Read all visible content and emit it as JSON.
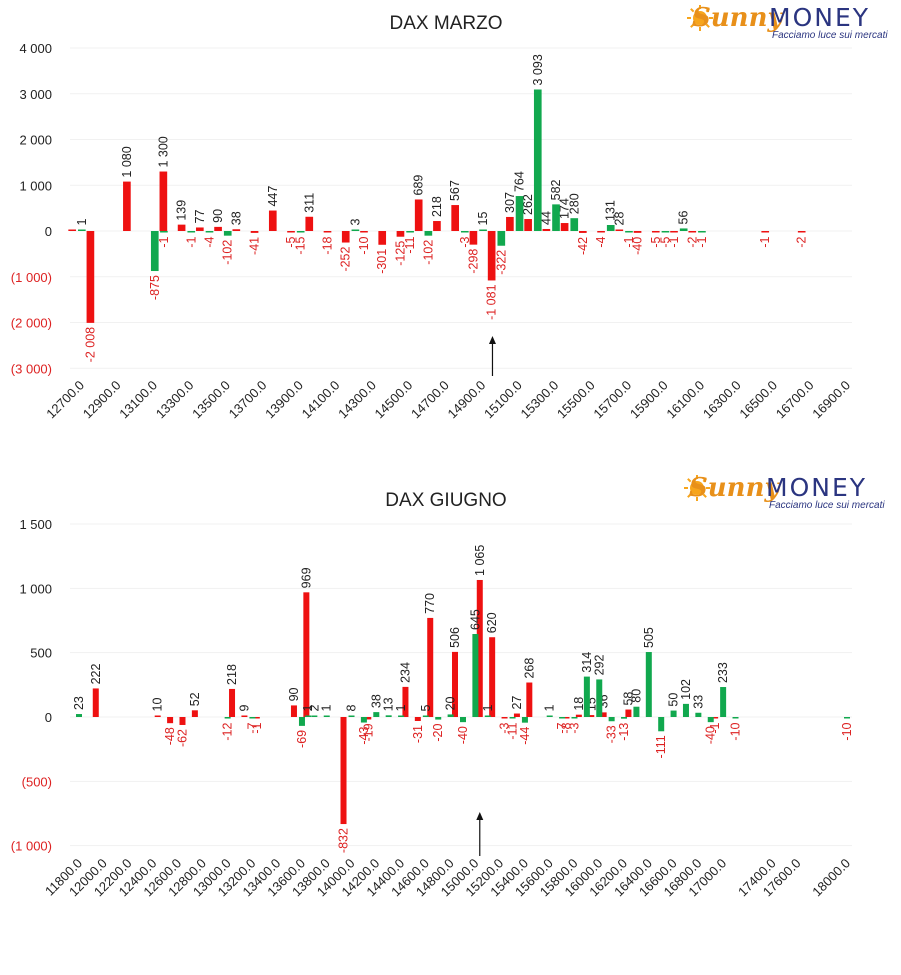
{
  "colors": {
    "call": "#ee1111",
    "put": "#11a84e",
    "negative_tick": "#dd2222",
    "axis_text": "#222222"
  },
  "logo": {
    "word1": "Sunny",
    "word2": "MONEY",
    "tagline": "Facciamo luce sui mercati",
    "icon": "sun-icon"
  },
  "chart_data": [
    {
      "type": "bar",
      "title": "DAX MARZO",
      "xlabel": "",
      "ylabel": "",
      "ylim": [
        -3000,
        4000
      ],
      "ylim_max": 4300,
      "yticks": [
        {
          "v": 4000,
          "t": "4 000"
        },
        {
          "v": 3000,
          "t": "3 000"
        },
        {
          "v": 2000,
          "t": "2 000"
        },
        {
          "v": 1000,
          "t": "1 000"
        },
        {
          "v": 0,
          "t": "0"
        },
        {
          "v": -1000,
          "t": "(1 000)"
        },
        {
          "v": -2000,
          "t": "(2 000)"
        },
        {
          "v": -3000,
          "t": "(3 000)"
        }
      ],
      "strikes": [
        12700,
        12800,
        12900,
        13000,
        13100,
        13200,
        13300,
        13400,
        13500,
        13600,
        13700,
        13800,
        13900,
        14000,
        14100,
        14200,
        14300,
        14400,
        14500,
        14600,
        14700,
        14800,
        14900,
        15000,
        15100,
        15200,
        15300,
        15400,
        15500,
        15600,
        15700,
        15800,
        15900,
        16000,
        16100,
        16200,
        16300,
        16400,
        16500,
        16600,
        16700,
        16800,
        16900
      ],
      "xtick_labels": [
        "12700.0",
        "12900.0",
        "13100.0",
        "13300.0",
        "13500.0",
        "13700.0",
        "13900.0",
        "14100.0",
        "14300.0",
        "14500.0",
        "14700.0",
        "14900.0",
        "15100.0",
        "15300.0",
        "15500.0",
        "15700.0",
        "15900.0",
        "16100.0",
        "16300.0",
        "16500.0",
        "16700.0",
        "16900.0"
      ],
      "arrow_at": 15000,
      "calls": [
        {
          "x": 12700,
          "y": 0,
          "label": ""
        },
        {
          "x": 12800,
          "y": -2008,
          "label": "-2 008"
        },
        {
          "x": 13000,
          "y": 1080,
          "label": "1 080"
        },
        {
          "x": 13200,
          "y": 1300,
          "label": "1 300"
        },
        {
          "x": 13300,
          "y": 139,
          "label": "139"
        },
        {
          "x": 13400,
          "y": 77,
          "label": "77"
        },
        {
          "x": 13500,
          "y": 90,
          "label": "90"
        },
        {
          "x": 13600,
          "y": 38,
          "label": "38"
        },
        {
          "x": 13700,
          "y": -41,
          "label": "-41"
        },
        {
          "x": 13800,
          "y": 447,
          "label": "447"
        },
        {
          "x": 13900,
          "y": -5,
          "label": "-5"
        },
        {
          "x": 14000,
          "y": 311,
          "label": "311"
        },
        {
          "x": 14100,
          "y": -18,
          "label": "-18"
        },
        {
          "x": 14200,
          "y": -252,
          "label": "-252"
        },
        {
          "x": 14300,
          "y": -10,
          "label": "-10"
        },
        {
          "x": 14400,
          "y": -301,
          "label": "-301"
        },
        {
          "x": 14500,
          "y": -125,
          "label": "-125"
        },
        {
          "x": 14600,
          "y": 689,
          "label": "689"
        },
        {
          "x": 14700,
          "y": 218,
          "label": "218"
        },
        {
          "x": 14800,
          "y": 567,
          "label": "567"
        },
        {
          "x": 14900,
          "y": -298,
          "label": "-298"
        },
        {
          "x": 15000,
          "y": -1081,
          "label": "-1 081"
        },
        {
          "x": 15100,
          "y": 307,
          "label": "307"
        },
        {
          "x": 15200,
          "y": 262,
          "label": "262"
        },
        {
          "x": 15300,
          "y": 44,
          "label": "44"
        },
        {
          "x": 15400,
          "y": 174,
          "label": "174"
        },
        {
          "x": 15500,
          "y": -42,
          "label": "-42"
        },
        {
          "x": 15600,
          "y": -4,
          "label": "-4"
        },
        {
          "x": 15700,
          "y": 28,
          "label": "28"
        },
        {
          "x": 15800,
          "y": -40,
          "label": "-40"
        },
        {
          "x": 15900,
          "y": -5,
          "label": "-5"
        },
        {
          "x": 16000,
          "y": -1,
          "label": "-1"
        },
        {
          "x": 16100,
          "y": -2,
          "label": "-2"
        },
        {
          "x": 16500,
          "y": -1,
          "label": "-1"
        },
        {
          "x": 16700,
          "y": -2,
          "label": "-2"
        }
      ],
      "puts": [
        {
          "x": 12700,
          "y": 1,
          "label": "1"
        },
        {
          "x": 13100,
          "y": -875,
          "label": "-875"
        },
        {
          "x": 13100,
          "y": -1,
          "label": "-1",
          "slot": 1
        },
        {
          "x": 13300,
          "y": -1,
          "label": "-1"
        },
        {
          "x": 13400,
          "y": -4,
          "label": "-4"
        },
        {
          "x": 13500,
          "y": -102,
          "label": "-102"
        },
        {
          "x": 13900,
          "y": -15,
          "label": "-15"
        },
        {
          "x": 14200,
          "y": 3,
          "label": "3"
        },
        {
          "x": 14500,
          "y": -11,
          "label": "-11"
        },
        {
          "x": 14600,
          "y": -102,
          "label": "-102"
        },
        {
          "x": 14800,
          "y": -3,
          "label": "-3"
        },
        {
          "x": 14900,
          "y": 15,
          "label": "15"
        },
        {
          "x": 15000,
          "y": -322,
          "label": "-322"
        },
        {
          "x": 15100,
          "y": 764,
          "label": "764"
        },
        {
          "x": 15200,
          "y": 3093,
          "label": "3 093"
        },
        {
          "x": 15300,
          "y": 582,
          "label": "582"
        },
        {
          "x": 15400,
          "y": 280,
          "label": "280"
        },
        {
          "x": 15600,
          "y": 131,
          "label": "131"
        },
        {
          "x": 15700,
          "y": -1,
          "label": "-1"
        },
        {
          "x": 15900,
          "y": -5,
          "label": "-5"
        },
        {
          "x": 16000,
          "y": 56,
          "label": "56"
        },
        {
          "x": 16100,
          "y": -1,
          "label": "-1"
        }
      ]
    },
    {
      "type": "bar",
      "title": "DAX GIUGNO",
      "xlabel": "",
      "ylabel": "",
      "ylim": [
        -1000,
        1500
      ],
      "ylim_max": 1500,
      "ylim_min": -1050,
      "yticks": [
        {
          "v": 1500,
          "t": "1 500"
        },
        {
          "v": 1000,
          "t": "1 000"
        },
        {
          "v": 500,
          "t": "500"
        },
        {
          "v": 0,
          "t": "0"
        },
        {
          "v": -500,
          "t": "(500)"
        },
        {
          "v": -1000,
          "t": "(1 000)"
        }
      ],
      "strikes": [
        11800,
        11900,
        12000,
        12100,
        12200,
        12300,
        12400,
        12500,
        12600,
        12700,
        12800,
        12900,
        13000,
        13100,
        13200,
        13300,
        13400,
        13500,
        13600,
        13700,
        13800,
        13900,
        14000,
        14100,
        14200,
        14300,
        14400,
        14500,
        14600,
        14700,
        14800,
        14900,
        15000,
        15100,
        15200,
        15300,
        15400,
        15500,
        15600,
        15700,
        15800,
        15900,
        16000,
        16100,
        16200,
        16300,
        16400,
        16500,
        16600,
        16700,
        16800,
        16900,
        17000,
        17100,
        17200,
        17300,
        17400,
        17500,
        17600,
        17700,
        17800,
        17900,
        18000
      ],
      "xtick_labels": [
        "11800.0",
        "12000.0",
        "12200.0",
        "12400.0",
        "12600.0",
        "12800.0",
        "13000.0",
        "13200.0",
        "13400.0",
        "13600.0",
        "13800.0",
        "14000.0",
        "14200.0",
        "14400.0",
        "14600.0",
        "14800.0",
        "15000.0",
        "15200.0",
        "15400.0",
        "15600.0",
        "15800.0",
        "16000.0",
        "16200.0",
        "16400.0",
        "16600.0",
        "16800.0",
        "17000.0",
        "17400.0",
        "17600.0",
        "18000.0"
      ],
      "arrow_at": 15100,
      "calls": [
        {
          "x": 12000,
          "y": 222,
          "label": "222"
        },
        {
          "x": 12500,
          "y": 10,
          "label": "10"
        },
        {
          "x": 12600,
          "y": -48,
          "label": "-48"
        },
        {
          "x": 12700,
          "y": -62,
          "label": "-62"
        },
        {
          "x": 12800,
          "y": 52,
          "label": "52"
        },
        {
          "x": 13100,
          "y": 218,
          "label": "218"
        },
        {
          "x": 13200,
          "y": 9,
          "label": "9"
        },
        {
          "x": 13300,
          "y": -1,
          "label": "-1"
        },
        {
          "x": 13600,
          "y": 90,
          "label": "90"
        },
        {
          "x": 13700,
          "y": 969,
          "label": "969"
        },
        {
          "x": 14000,
          "y": -832,
          "label": "-832"
        },
        {
          "x": 14200,
          "y": -19,
          "label": "-19"
        },
        {
          "x": 14500,
          "y": 234,
          "label": "234"
        },
        {
          "x": 14600,
          "y": -31,
          "label": "-31"
        },
        {
          "x": 14700,
          "y": 770,
          "label": "770"
        },
        {
          "x": 14900,
          "y": 506,
          "label": "506"
        },
        {
          "x": 15100,
          "y": 1065,
          "label": "1 065"
        },
        {
          "x": 15200,
          "y": 620,
          "label": "620"
        },
        {
          "x": 15300,
          "y": -3,
          "label": "-3"
        },
        {
          "x": 15400,
          "y": 27,
          "label": "27"
        },
        {
          "x": 15500,
          "y": 268,
          "label": "268"
        },
        {
          "x": 15800,
          "y": -8,
          "label": "-8"
        },
        {
          "x": 15900,
          "y": 18,
          "label": "18"
        },
        {
          "x": 16000,
          "y": 15,
          "label": "15"
        },
        {
          "x": 16100,
          "y": 36,
          "label": "36"
        },
        {
          "x": 16300,
          "y": 58,
          "label": "58"
        },
        {
          "x": 17000,
          "y": -1,
          "label": "-1"
        }
      ],
      "puts": [
        {
          "x": 11800,
          "y": 23,
          "label": "23"
        },
        {
          "x": 13000,
          "y": -12,
          "label": "-12"
        },
        {
          "x": 13200,
          "y": -7,
          "label": "-7"
        },
        {
          "x": 13600,
          "y": -69,
          "label": "-69"
        },
        {
          "x": 13600,
          "y": 1,
          "label": "1",
          "slot": 1
        },
        {
          "x": 13700,
          "y": 2,
          "label": "2"
        },
        {
          "x": 13800,
          "y": 1,
          "label": "1"
        },
        {
          "x": 14000,
          "y": 8,
          "label": "8"
        },
        {
          "x": 14100,
          "y": -43,
          "label": "-43"
        },
        {
          "x": 14200,
          "y": 38,
          "label": "38"
        },
        {
          "x": 14300,
          "y": 13,
          "label": "13"
        },
        {
          "x": 14400,
          "y": 1,
          "label": "1"
        },
        {
          "x": 14600,
          "y": 5,
          "label": "5"
        },
        {
          "x": 14700,
          "y": -20,
          "label": "-20"
        },
        {
          "x": 14800,
          "y": 20,
          "label": "20"
        },
        {
          "x": 14900,
          "y": -40,
          "label": "-40"
        },
        {
          "x": 15000,
          "y": 645,
          "label": "645"
        },
        {
          "x": 15100,
          "y": 1,
          "label": "1"
        },
        {
          "x": 15300,
          "y": -11,
          "label": "-11"
        },
        {
          "x": 15400,
          "y": -44,
          "label": "-44"
        },
        {
          "x": 15600,
          "y": 1,
          "label": "1"
        },
        {
          "x": 15700,
          "y": -7,
          "label": "-7"
        },
        {
          "x": 15800,
          "y": -3,
          "label": "-3"
        },
        {
          "x": 15900,
          "y": 314,
          "label": "314"
        },
        {
          "x": 16000,
          "y": 292,
          "label": "292"
        },
        {
          "x": 16100,
          "y": -33,
          "label": "-33"
        },
        {
          "x": 16200,
          "y": -13,
          "label": "-13"
        },
        {
          "x": 16300,
          "y": 80,
          "label": "80"
        },
        {
          "x": 16400,
          "y": 505,
          "label": "505"
        },
        {
          "x": 16500,
          "y": -111,
          "label": "-111"
        },
        {
          "x": 16600,
          "y": 50,
          "label": "50"
        },
        {
          "x": 16700,
          "y": 102,
          "label": "102"
        },
        {
          "x": 16800,
          "y": 33,
          "label": "33"
        },
        {
          "x": 16900,
          "y": -40,
          "label": "-40"
        },
        {
          "x": 17000,
          "y": 233,
          "label": "233"
        },
        {
          "x": 17100,
          "y": -10,
          "label": "-10"
        },
        {
          "x": 18000,
          "y": -10,
          "label": "-10"
        }
      ]
    }
  ]
}
